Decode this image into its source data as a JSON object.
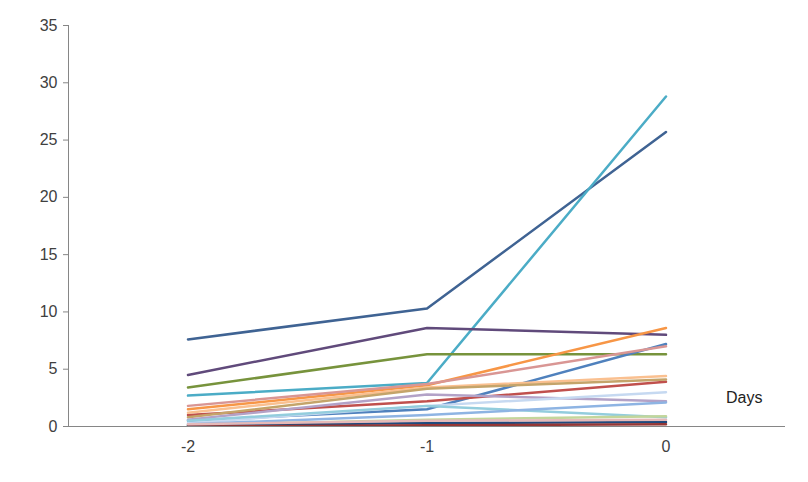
{
  "chart_data": {
    "type": "line",
    "annotations": [
      "Days"
    ],
    "x": [
      -2,
      -1,
      0
    ],
    "xlim": [
      -2.5,
      0.5
    ],
    "xticks": [
      -2,
      -1,
      0
    ],
    "ylim": [
      0,
      35
    ],
    "yticks": [
      0,
      5,
      10,
      15,
      20,
      25,
      30,
      35
    ],
    "grid": false,
    "series": [
      {
        "color": "#3f6393",
        "values": [
          7.6,
          10.3,
          25.7
        ]
      },
      {
        "color": "#4bacc6",
        "values": [
          2.7,
          3.8,
          28.8
        ]
      },
      {
        "color": "#604a7b",
        "values": [
          4.5,
          8.6,
          8.0
        ]
      },
      {
        "color": "#77933c",
        "values": [
          3.4,
          6.3,
          6.3
        ]
      },
      {
        "color": "#f79646",
        "values": [
          1.5,
          3.6,
          8.6
        ]
      },
      {
        "color": "#4f81bd",
        "values": [
          0.5,
          1.5,
          7.2
        ]
      },
      {
        "color": "#d99694",
        "values": [
          1.8,
          3.7,
          7.0
        ]
      },
      {
        "color": "#c0504d",
        "values": [
          1.0,
          2.2,
          3.9
        ]
      },
      {
        "color": "#fac090",
        "values": [
          1.2,
          3.4,
          4.4
        ]
      },
      {
        "color": "#c4a46a",
        "values": [
          0.8,
          3.3,
          4.1
        ]
      },
      {
        "color": "#b3a2c7",
        "values": [
          0.6,
          2.8,
          2.2
        ]
      },
      {
        "color": "#c6d9f1",
        "values": [
          0.3,
          1.8,
          3.0
        ]
      },
      {
        "color": "#93cddd",
        "values": [
          0.5,
          1.8,
          0.8
        ]
      },
      {
        "color": "#8eb4e3",
        "values": [
          0.2,
          1.0,
          2.1
        ]
      },
      {
        "color": "#c3d69b",
        "values": [
          0.1,
          0.6,
          0.9
        ]
      },
      {
        "color": "#1f497d",
        "values": [
          0.1,
          0.3,
          0.4
        ]
      },
      {
        "color": "#953735",
        "values": [
          0.0,
          0.1,
          0.2
        ]
      },
      {
        "color": "#e6b9b8",
        "values": [
          0.2,
          0.5,
          0.6
        ]
      }
    ]
  }
}
